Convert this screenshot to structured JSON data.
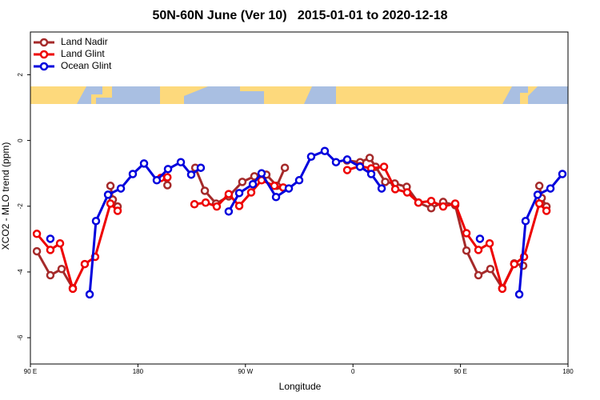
{
  "chart_data": {
    "type": "line",
    "title": "50N-60N June (Ver 10)   2015-01-01 to 2020-12-18",
    "x_label": "Longitude",
    "y_label": "XCO2 - MLO trend (ppm)",
    "xlim": [
      90,
      540
    ],
    "xticks": [
      {
        "value": 90,
        "label": "90 E"
      },
      {
        "value": 180,
        "label": "180"
      },
      {
        "value": 270,
        "label": "90 W"
      },
      {
        "value": 360,
        "label": "0"
      },
      {
        "value": 450,
        "label": "90 E"
      },
      {
        "value": 540,
        "label": "180"
      }
    ],
    "ylim": [
      -6.8,
      3.3
    ],
    "yticks": [
      -6,
      -4,
      -2,
      0,
      2
    ],
    "legend": "top-left",
    "series": [
      {
        "name": "Land Nadir",
        "color": "#a52a2a",
        "x": [
          95.4,
          106.7,
          116.1,
          125.5,
          null,
          157,
          159,
          163,
          null,
          204,
          204.7,
          null,
          228,
          236,
          245.4,
          256,
          267.4,
          277.5,
          287.5,
          296.3,
          303,
          null,
          355,
          366,
          374,
          379,
          387,
          395,
          405,
          414.8,
          425.5,
          435.5,
          445.6,
          455,
          465,
          475,
          485,
          495,
          502.5,
          null,
          516,
          518,
          522
        ],
        "values": [
          -3.37,
          -4.1,
          -3.91,
          -4.49,
          null,
          -1.38,
          -1.8,
          -2.01,
          null,
          -1.14,
          -1.36,
          null,
          -0.83,
          -1.53,
          -1.92,
          -1.7,
          -1.26,
          -1.09,
          -1.04,
          -1.38,
          -0.83,
          null,
          -0.61,
          -0.66,
          -0.53,
          -0.8,
          -1.26,
          -1.31,
          -1.41,
          -1.89,
          -2.06,
          -1.87,
          -1.97,
          -3.35,
          -4.1,
          -3.91,
          -4.49,
          -3.74,
          -3.81,
          null,
          -1.38,
          -1.75,
          -2.01
        ]
      },
      {
        "name": "Land Glint",
        "color": "#ee0000",
        "x": [
          95.4,
          106.7,
          114.8,
          125.5,
          135.5,
          144.2,
          157,
          163,
          null,
          199.2,
          204.7,
          null,
          227.3,
          236.7,
          246,
          256,
          264.8,
          274.8,
          283.5,
          294.2,
          301.6,
          null,
          355.2,
          365.9,
          375.3,
          386,
          395.4,
          405.4,
          414.8,
          425.5,
          435.5,
          445.6,
          455,
          465,
          474.4,
          485,
          495,
          503.2,
          516,
          522
        ],
        "values": [
          -2.84,
          -3.33,
          -3.13,
          -4.51,
          -3.76,
          -3.54,
          -1.92,
          -2.14,
          null,
          -1.14,
          -1.12,
          null,
          -1.94,
          -1.89,
          -2.01,
          -1.63,
          -1.99,
          -1.58,
          -1.21,
          -1.38,
          -1.43,
          null,
          -0.9,
          -0.78,
          -0.85,
          -0.8,
          -1.48,
          -1.58,
          -1.89,
          -1.84,
          -2.01,
          -1.92,
          -2.82,
          -3.33,
          -3.13,
          -4.51,
          -3.76,
          -3.54,
          -1.92,
          -2.14
        ]
      },
      {
        "name": "Ocean Glint",
        "color": "#0000dd",
        "x": [
          106.7,
          null,
          139.6,
          144.9,
          155,
          165.7,
          175.7,
          185.1,
          195.8,
          205.2,
          215.9,
          224.6,
          232.6,
          null,
          256,
          264.8,
          276.2,
          283.5,
          295.6,
          306.3,
          315,
          325,
          336.4,
          345.8,
          355.2,
          365.9,
          375.3,
          384,
          null,
          466.3,
          null,
          499.2,
          504.5,
          514.6,
          525.3,
          535.3
        ],
        "values": [
          -2.99,
          null,
          -4.68,
          -2.45,
          -1.65,
          -1.46,
          -1.02,
          -0.7,
          -1.21,
          -0.87,
          -0.66,
          -1.04,
          -0.83,
          null,
          -2.16,
          -1.6,
          -1.33,
          -1.0,
          -1.72,
          -1.46,
          -1.21,
          -0.49,
          -0.32,
          -0.66,
          -0.58,
          -0.8,
          -1.02,
          -1.46,
          null,
          -2.99,
          null,
          -4.68,
          -2.45,
          -1.65,
          -1.46,
          -1.02
        ]
      }
    ]
  }
}
